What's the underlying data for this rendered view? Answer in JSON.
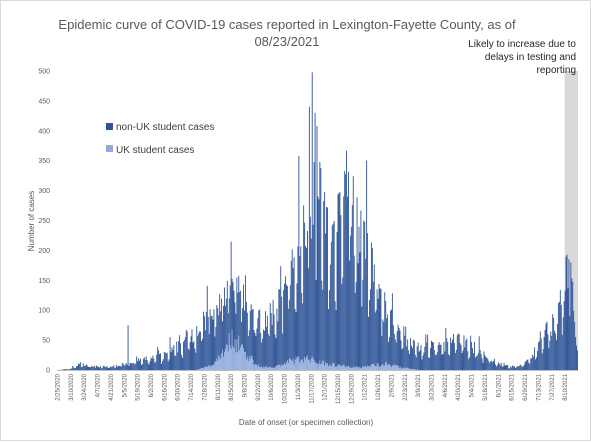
{
  "chart_data": {
    "type": "bar",
    "stacked": true,
    "title_lines": [
      "Epidemic curve of COVID-19 cases reported in Lexington-Fayette County, as of",
      "08/23/2021"
    ],
    "xlabel": "Date of onset (or specimen collection)",
    "ylabel": "Number of cases",
    "ylim": [
      0,
      500
    ],
    "yticks": [
      0,
      50,
      100,
      150,
      200,
      250,
      300,
      350,
      400,
      450,
      500
    ],
    "x_start": "2020-02-25",
    "x_end": "2021-08-23",
    "x_ticks": [
      "2/25/2020",
      "3/10/2020",
      "3/24/2020",
      "4/7/2020",
      "4/21/2020",
      "5/5/2020",
      "5/19/2020",
      "6/2/2020",
      "6/16/2020",
      "6/30/2020",
      "7/14/2020",
      "7/28/2020",
      "8/11/2020",
      "8/25/2020",
      "9/8/2020",
      "9/22/2020",
      "10/6/2020",
      "10/20/2020",
      "11/3/2020",
      "11/17/2020",
      "12/1/2020",
      "12/15/2020",
      "12/29/2020",
      "1/12/2021",
      "1/26/2021",
      "2/9/2021",
      "2/23/2021",
      "3/9/2021",
      "3/23/2021",
      "4/6/2021",
      "4/20/2021",
      "5/4/2021",
      "5/18/2021",
      "6/1/2021",
      "6/15/2021",
      "6/29/2021",
      "7/13/2021",
      "7/27/2021",
      "8/10/2021"
    ],
    "legend_position": "upper-left",
    "grid": false,
    "series": [
      {
        "name": "non-UK student cases",
        "color": "#2f5597",
        "curve": [
          [
            "2020-02-25",
            0
          ],
          [
            "2020-03-10",
            2
          ],
          [
            "2020-03-20",
            10
          ],
          [
            "2020-04-01",
            6
          ],
          [
            "2020-04-20",
            5
          ],
          [
            "2020-05-01",
            8
          ],
          [
            "2020-05-15",
            14
          ],
          [
            "2020-06-01",
            18
          ],
          [
            "2020-06-15",
            22
          ],
          [
            "2020-07-01",
            38
          ],
          [
            "2020-07-15",
            60
          ],
          [
            "2020-07-28",
            72
          ],
          [
            "2020-08-10",
            80
          ],
          [
            "2020-08-25",
            92
          ],
          [
            "2020-09-08",
            80
          ],
          [
            "2020-09-22",
            72
          ],
          [
            "2020-10-06",
            80
          ],
          [
            "2020-10-20",
            112
          ],
          [
            "2020-11-03",
            170
          ],
          [
            "2020-11-12",
            235
          ],
          [
            "2020-11-20",
            285
          ],
          [
            "2020-12-01",
            230
          ],
          [
            "2020-12-10",
            185
          ],
          [
            "2020-12-20",
            235
          ],
          [
            "2020-12-29",
            255
          ],
          [
            "2021-01-08",
            210
          ],
          [
            "2021-01-20",
            150
          ],
          [
            "2021-02-01",
            95
          ],
          [
            "2021-02-15",
            60
          ],
          [
            "2021-03-01",
            40
          ],
          [
            "2021-03-15",
            35
          ],
          [
            "2021-04-01",
            38
          ],
          [
            "2021-04-20",
            48
          ],
          [
            "2021-05-04",
            38
          ],
          [
            "2021-05-18",
            24
          ],
          [
            "2021-06-01",
            10
          ],
          [
            "2021-06-15",
            5
          ],
          [
            "2021-06-29",
            10
          ],
          [
            "2021-07-10",
            30
          ],
          [
            "2021-07-20",
            55
          ],
          [
            "2021-07-30",
            85
          ],
          [
            "2021-08-06",
            110
          ],
          [
            "2021-08-12",
            148
          ],
          [
            "2021-08-18",
            130
          ],
          [
            "2021-08-23",
            40
          ]
        ]
      },
      {
        "name": "UK student cases",
        "color": "#8faadc",
        "curve": [
          [
            "2020-02-25",
            0
          ],
          [
            "2020-07-20",
            0
          ],
          [
            "2020-08-05",
            8
          ],
          [
            "2020-08-15",
            28
          ],
          [
            "2020-08-25",
            52
          ],
          [
            "2020-09-02",
            45
          ],
          [
            "2020-09-12",
            22
          ],
          [
            "2020-09-25",
            5
          ],
          [
            "2020-10-10",
            5
          ],
          [
            "2020-10-25",
            14
          ],
          [
            "2020-11-10",
            20
          ],
          [
            "2020-11-25",
            14
          ],
          [
            "2020-12-10",
            9
          ],
          [
            "2021-01-05",
            4
          ],
          [
            "2021-01-20",
            8
          ],
          [
            "2021-02-05",
            10
          ],
          [
            "2021-02-20",
            4
          ],
          [
            "2021-03-10",
            0
          ],
          [
            "2021-08-23",
            0
          ]
        ]
      }
    ],
    "annotation": {
      "lines": [
        "Likely to increase due to",
        "delays in testing and",
        "reporting"
      ],
      "shade_start": "2021-08-10",
      "shade_end": "2021-08-23",
      "shade_color": "#d9d9d9"
    }
  }
}
